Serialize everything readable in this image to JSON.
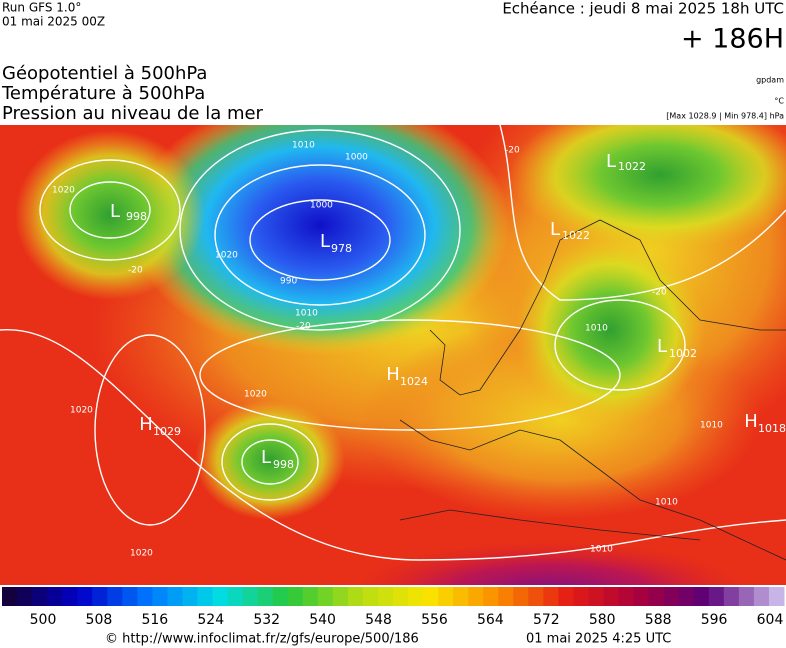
{
  "header": {
    "run": "Run GFS 1.0°",
    "run_date": "01 mai 2025 00Z",
    "valid": "Echéance : jeudi 8 mai 2025 18h UTC",
    "lead": "+ 186H"
  },
  "titles": [
    "Géopotentiel à 500hPa",
    "Température à 500hPa",
    "Pression au niveau de la mer"
  ],
  "units": {
    "geopotential": "gpdam",
    "temperature": "°C",
    "pressure": "[Max 1028.9 | Min 978.4] hPa"
  },
  "centers": [
    {
      "type": "L",
      "value": 998
    },
    {
      "type": "L",
      "value": 978
    },
    {
      "type": "H",
      "value": 1024
    },
    {
      "type": "H",
      "value": 1029
    },
    {
      "type": "L",
      "value": 998
    },
    {
      "type": "L",
      "value": 1022
    },
    {
      "type": "L",
      "value": 1022
    },
    {
      "type": "L",
      "value": 1002
    },
    {
      "type": "H",
      "value": 1018
    }
  ],
  "isobar_labels": [
    1020,
    1010,
    1000,
    990,
    1010,
    1020,
    1020,
    1020,
    1010,
    1020,
    1010,
    1010,
    1010,
    1000
  ],
  "temperature_labels": [
    -20,
    -20,
    -20,
    -20
  ],
  "colorbar": {
    "ticks": [
      500,
      508,
      516,
      524,
      532,
      540,
      548,
      556,
      564,
      572,
      580,
      588,
      596,
      604
    ]
  },
  "footer": {
    "url": "© http://www.infoclimat.fr/z/gfs/europe/500/186",
    "generated": "01 mai 2025  4:25 UTC"
  }
}
